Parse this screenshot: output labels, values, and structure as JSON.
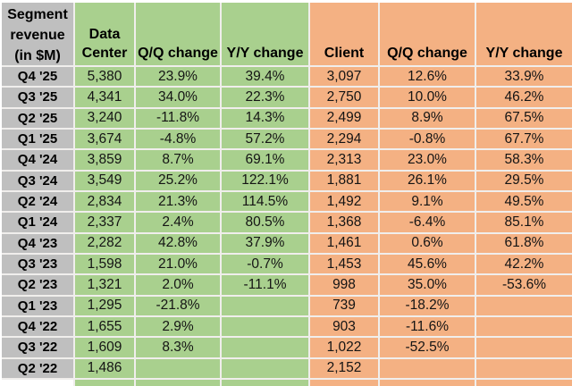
{
  "colors": {
    "gray": "#bfbfbf",
    "green": "#a9d08e",
    "orange": "#f4b183",
    "line": "#f0eeec"
  },
  "table": {
    "title": "Segment revenue (in $M)",
    "corner_lines": [
      "Segment",
      "revenue",
      "(in $M)"
    ],
    "column_headers": {
      "data_center": "Data Center",
      "dc_qq": "Q/Q change",
      "dc_yy": "Y/Y change",
      "client": "Client",
      "cl_qq": "Q/Q change",
      "cl_yy": "Y/Y change"
    },
    "rows": [
      {
        "quarter": "Q4 '25",
        "dc": "5,380",
        "dc_qq": "23.9%",
        "dc_yy": "39.4%",
        "client": "3,097",
        "cl_qq": "12.6%",
        "cl_yy": "33.9%"
      },
      {
        "quarter": "Q3 '25",
        "dc": "4,341",
        "dc_qq": "34.0%",
        "dc_yy": "22.3%",
        "client": "2,750",
        "cl_qq": "10.0%",
        "cl_yy": "46.2%"
      },
      {
        "quarter": "Q2 '25",
        "dc": "3,240",
        "dc_qq": "-11.8%",
        "dc_yy": "14.3%",
        "client": "2,499",
        "cl_qq": "8.9%",
        "cl_yy": "67.5%"
      },
      {
        "quarter": "Q1 '25",
        "dc": "3,674",
        "dc_qq": "-4.8%",
        "dc_yy": "57.2%",
        "client": "2,294",
        "cl_qq": "-0.8%",
        "cl_yy": "67.7%"
      },
      {
        "quarter": "Q4 '24",
        "dc": "3,859",
        "dc_qq": "8.7%",
        "dc_yy": "69.1%",
        "client": "2,313",
        "cl_qq": "23.0%",
        "cl_yy": "58.3%"
      },
      {
        "quarter": "Q3 '24",
        "dc": "3,549",
        "dc_qq": "25.2%",
        "dc_yy": "122.1%",
        "client": "1,881",
        "cl_qq": "26.1%",
        "cl_yy": "29.5%"
      },
      {
        "quarter": "Q2 '24",
        "dc": "2,834",
        "dc_qq": "21.3%",
        "dc_yy": "114.5%",
        "client": "1,492",
        "cl_qq": "9.1%",
        "cl_yy": "49.5%"
      },
      {
        "quarter": "Q1 '24",
        "dc": "2,337",
        "dc_qq": "2.4%",
        "dc_yy": "80.5%",
        "client": "1,368",
        "cl_qq": "-6.4%",
        "cl_yy": "85.1%"
      },
      {
        "quarter": "Q4 '23",
        "dc": "2,282",
        "dc_qq": "42.8%",
        "dc_yy": "37.9%",
        "client": "1,461",
        "cl_qq": "0.6%",
        "cl_yy": "61.8%"
      },
      {
        "quarter": "Q3 '23",
        "dc": "1,598",
        "dc_qq": "21.0%",
        "dc_yy": "-0.7%",
        "client": "1,453",
        "cl_qq": "45.6%",
        "cl_yy": "42.2%"
      },
      {
        "quarter": "Q2 '23",
        "dc": "1,321",
        "dc_qq": "2.0%",
        "dc_yy": "-11.1%",
        "client": "998",
        "cl_qq": "35.0%",
        "cl_yy": "-53.6%"
      },
      {
        "quarter": "Q1 '23",
        "dc": "1,295",
        "dc_qq": "-21.8%",
        "dc_yy": "",
        "client": "739",
        "cl_qq": "-18.2%",
        "cl_yy": ""
      },
      {
        "quarter": "Q4 '22",
        "dc": "1,655",
        "dc_qq": "2.9%",
        "dc_yy": "",
        "client": "903",
        "cl_qq": "-11.6%",
        "cl_yy": ""
      },
      {
        "quarter": "Q3 '22",
        "dc": "1,609",
        "dc_qq": "8.3%",
        "dc_yy": "",
        "client": "1,022",
        "cl_qq": "-52.5%",
        "cl_yy": ""
      },
      {
        "quarter": "Q2 '22",
        "dc": "1,486",
        "dc_qq": "",
        "dc_yy": "",
        "client": "2,152",
        "cl_qq": "",
        "cl_yy": ""
      }
    ]
  }
}
